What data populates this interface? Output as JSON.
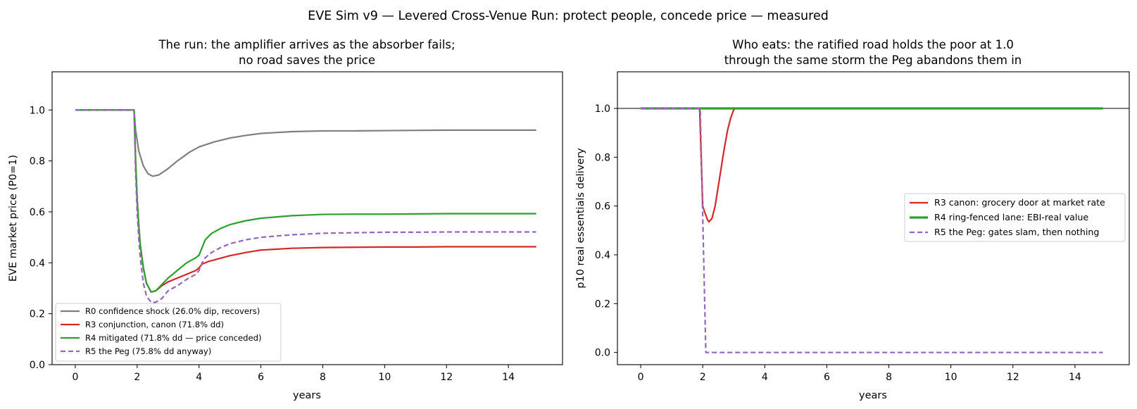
{
  "suptitle": "EVE Sim v9 — Levered Cross-Venue Run: protect people, concede price — measured",
  "chart_data": [
    {
      "type": "line",
      "title": [
        "The run: the amplifier arrives as the absorber fails;",
        "no road saves the price"
      ],
      "xlabel": "years",
      "ylabel": "EVE market price (P0=1)",
      "xlim": [
        -0.75,
        15.75
      ],
      "ylim": [
        0.0,
        1.15
      ],
      "xticks": [
        "0",
        "2",
        "4",
        "6",
        "8",
        "10",
        "12",
        "14"
      ],
      "yticks": [
        "0.0",
        "0.2",
        "0.4",
        "0.6",
        "0.8",
        "1.0"
      ],
      "grid": false,
      "legend_position": "lower-left",
      "series": [
        {
          "name": "R0 confidence shock (26.0% dip, recovers)",
          "color": "#7f7f7f",
          "dash": "solid",
          "width": 2.2,
          "points": [
            [
              0,
              1.0
            ],
            [
              1.9,
              1.0
            ],
            [
              1.95,
              0.92
            ],
            [
              2.05,
              0.84
            ],
            [
              2.2,
              0.78
            ],
            [
              2.35,
              0.75
            ],
            [
              2.5,
              0.74
            ],
            [
              2.7,
              0.745
            ],
            [
              3.0,
              0.77
            ],
            [
              3.3,
              0.8
            ],
            [
              3.7,
              0.835
            ],
            [
              4.0,
              0.855
            ],
            [
              4.5,
              0.875
            ],
            [
              5.0,
              0.89
            ],
            [
              5.5,
              0.9
            ],
            [
              6.0,
              0.908
            ],
            [
              7.0,
              0.915
            ],
            [
              8.0,
              0.918
            ],
            [
              9.0,
              0.918
            ],
            [
              10.0,
              0.919
            ],
            [
              11.0,
              0.92
            ],
            [
              12.0,
              0.921
            ],
            [
              13.0,
              0.921
            ],
            [
              14.0,
              0.921
            ],
            [
              14.9,
              0.921
            ]
          ]
        },
        {
          "name": "R3 conjunction, canon (71.8% dd)",
          "color": "#d62728",
          "dash": "solid",
          "width": 2.2,
          "points": [
            [
              0,
              1.0
            ],
            [
              1.9,
              1.0
            ],
            [
              1.95,
              0.8
            ],
            [
              2.0,
              0.65
            ],
            [
              2.05,
              0.55
            ],
            [
              2.1,
              0.47
            ],
            [
              2.2,
              0.38
            ],
            [
              2.3,
              0.32
            ],
            [
              2.45,
              0.285
            ],
            [
              2.6,
              0.29
            ],
            [
              2.8,
              0.31
            ],
            [
              3.0,
              0.325
            ],
            [
              3.3,
              0.34
            ],
            [
              3.6,
              0.355
            ],
            [
              3.9,
              0.37
            ],
            [
              4.0,
              0.38
            ],
            [
              4.1,
              0.395
            ],
            [
              4.3,
              0.405
            ],
            [
              4.6,
              0.415
            ],
            [
              5.0,
              0.428
            ],
            [
              5.5,
              0.44
            ],
            [
              6.0,
              0.45
            ],
            [
              7.0,
              0.457
            ],
            [
              8.0,
              0.46
            ],
            [
              9.0,
              0.461
            ],
            [
              10.0,
              0.462
            ],
            [
              11.0,
              0.462
            ],
            [
              12.0,
              0.463
            ],
            [
              13.0,
              0.463
            ],
            [
              14.0,
              0.463
            ],
            [
              14.9,
              0.463
            ]
          ]
        },
        {
          "name": "R4 mitigated (71.8% dd — price conceded)",
          "color": "#2ca02c",
          "dash": "solid",
          "width": 2.2,
          "points": [
            [
              0,
              1.0
            ],
            [
              1.9,
              1.0
            ],
            [
              1.95,
              0.8
            ],
            [
              2.0,
              0.65
            ],
            [
              2.05,
              0.55
            ],
            [
              2.1,
              0.47
            ],
            [
              2.2,
              0.38
            ],
            [
              2.3,
              0.32
            ],
            [
              2.45,
              0.285
            ],
            [
              2.6,
              0.29
            ],
            [
              2.8,
              0.315
            ],
            [
              3.0,
              0.34
            ],
            [
              3.3,
              0.37
            ],
            [
              3.6,
              0.4
            ],
            [
              3.9,
              0.42
            ],
            [
              4.0,
              0.43
            ],
            [
              4.1,
              0.46
            ],
            [
              4.2,
              0.49
            ],
            [
              4.4,
              0.515
            ],
            [
              4.7,
              0.535
            ],
            [
              5.0,
              0.55
            ],
            [
              5.5,
              0.565
            ],
            [
              6.0,
              0.575
            ],
            [
              7.0,
              0.585
            ],
            [
              8.0,
              0.59
            ],
            [
              9.0,
              0.591
            ],
            [
              10.0,
              0.591
            ],
            [
              11.0,
              0.592
            ],
            [
              12.0,
              0.593
            ],
            [
              13.0,
              0.593
            ],
            [
              14.0,
              0.593
            ],
            [
              14.9,
              0.593
            ]
          ]
        },
        {
          "name": "R5 the Peg (75.8% dd anyway)",
          "color": "#9467bd",
          "dash": "dashed",
          "width": 2.2,
          "points": [
            [
              0,
              1.0
            ],
            [
              1.9,
              1.0
            ],
            [
              1.95,
              0.75
            ],
            [
              2.0,
              0.6
            ],
            [
              2.05,
              0.5
            ],
            [
              2.1,
              0.42
            ],
            [
              2.2,
              0.32
            ],
            [
              2.3,
              0.27
            ],
            [
              2.45,
              0.245
            ],
            [
              2.6,
              0.245
            ],
            [
              2.8,
              0.26
            ],
            [
              3.0,
              0.29
            ],
            [
              3.3,
              0.31
            ],
            [
              3.6,
              0.335
            ],
            [
              3.9,
              0.355
            ],
            [
              4.0,
              0.37
            ],
            [
              4.1,
              0.4
            ],
            [
              4.2,
              0.42
            ],
            [
              4.4,
              0.44
            ],
            [
              4.7,
              0.46
            ],
            [
              5.0,
              0.475
            ],
            [
              5.5,
              0.49
            ],
            [
              6.0,
              0.5
            ],
            [
              7.0,
              0.51
            ],
            [
              8.0,
              0.516
            ],
            [
              9.0,
              0.518
            ],
            [
              10.0,
              0.52
            ],
            [
              11.0,
              0.52
            ],
            [
              12.0,
              0.521
            ],
            [
              13.0,
              0.521
            ],
            [
              14.0,
              0.521
            ],
            [
              14.9,
              0.521
            ]
          ]
        }
      ]
    },
    {
      "type": "line",
      "title": [
        "Who eats: the ratified road holds the poor at 1.0",
        "through the same storm the Peg abandons them in"
      ],
      "xlabel": "years",
      "ylabel": "p10 real essentials delivery",
      "xlim": [
        -0.75,
        15.75
      ],
      "ylim": [
        -0.05,
        1.15
      ],
      "xticks": [
        "0",
        "2",
        "4",
        "6",
        "8",
        "10",
        "12",
        "14"
      ],
      "yticks": [
        "0.0",
        "0.2",
        "0.4",
        "0.6",
        "0.8",
        "1.0"
      ],
      "hline": 1.0,
      "grid": false,
      "legend_position": "center-right",
      "series": [
        {
          "name": "R3 canon: grocery door at market rate",
          "color": "#d62728",
          "dash": "solid",
          "width": 2.2,
          "points": [
            [
              0,
              1.0
            ],
            [
              1.9,
              1.0
            ],
            [
              1.95,
              0.8
            ],
            [
              2.0,
              0.6
            ],
            [
              2.05,
              0.58
            ],
            [
              2.15,
              0.545
            ],
            [
              2.2,
              0.535
            ],
            [
              2.3,
              0.55
            ],
            [
              2.4,
              0.6
            ],
            [
              2.5,
              0.68
            ],
            [
              2.6,
              0.76
            ],
            [
              2.7,
              0.84
            ],
            [
              2.8,
              0.91
            ],
            [
              2.9,
              0.96
            ],
            [
              3.0,
              0.995
            ],
            [
              3.05,
              1.0
            ],
            [
              14.9,
              1.0
            ]
          ]
        },
        {
          "name": "R4 ring-fenced lane: EBI-real value",
          "color": "#2ca02c",
          "dash": "solid",
          "width": 3.2,
          "points": [
            [
              0,
              1.0
            ],
            [
              14.9,
              1.0
            ]
          ]
        },
        {
          "name": "R5 the Peg: gates slam, then nothing",
          "color": "#9467bd",
          "dash": "dashed",
          "width": 2.2,
          "points": [
            [
              0,
              1.0
            ],
            [
              1.92,
              1.0
            ],
            [
              2.1,
              0.0
            ],
            [
              14.9,
              0.0
            ]
          ]
        }
      ]
    }
  ]
}
